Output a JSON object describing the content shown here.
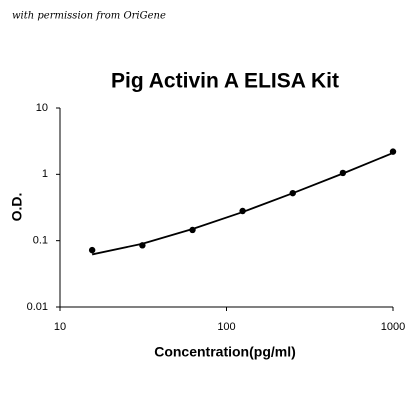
{
  "chart_data": {
    "type": "scatter",
    "annotation": "with permission from OriGene",
    "title": "Pig Activin A ELISA Kit",
    "x_label": "Concentration(pg/ml)",
    "y_label": "O.D.",
    "x": [
      15.6,
      31.25,
      62.5,
      125,
      250,
      500,
      1000
    ],
    "series": [
      {
        "style": "markers",
        "color": "#000000",
        "values": [
          0.072,
          0.085,
          0.145,
          0.28,
          0.52,
          1.05,
          2.2
        ]
      },
      {
        "style": "line",
        "color": "#000000",
        "values": [
          0.062,
          0.09,
          0.15,
          0.27,
          0.52,
          1.03,
          2.1
        ]
      }
    ],
    "xscale": "log",
    "yscale": "log",
    "xlim": [
      10,
      1000
    ],
    "ylim": [
      0.01,
      10
    ],
    "xticks": [
      10,
      100,
      1000
    ],
    "yticks": [
      0.01,
      0.1,
      1,
      10
    ],
    "grid": false
  }
}
